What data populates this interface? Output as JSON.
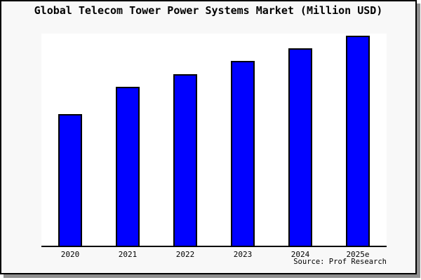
{
  "figure": {
    "background": "#f8f8f8",
    "plot_background": "#ffffff",
    "border_color": "#000000",
    "shadow_color": "#8f8f8f",
    "axis_color": "#000000"
  },
  "chart_data": {
    "type": "bar",
    "title": "Global Telecom Tower Power Systems Market (Million USD)",
    "categories": [
      "2020",
      "2021",
      "2022",
      "2023",
      "2024",
      "2025e"
    ],
    "values": [
      0.62,
      0.75,
      0.81,
      0.87,
      0.93,
      0.99
    ],
    "xlabel": "",
    "ylabel": "",
    "ylim": [
      0,
      1
    ],
    "y_axis_labels_visible": false,
    "grid": false,
    "legend": false,
    "bar_color": "#0000ff",
    "bar_border_color": "#000000",
    "source_note": "Source: Prof Research"
  }
}
